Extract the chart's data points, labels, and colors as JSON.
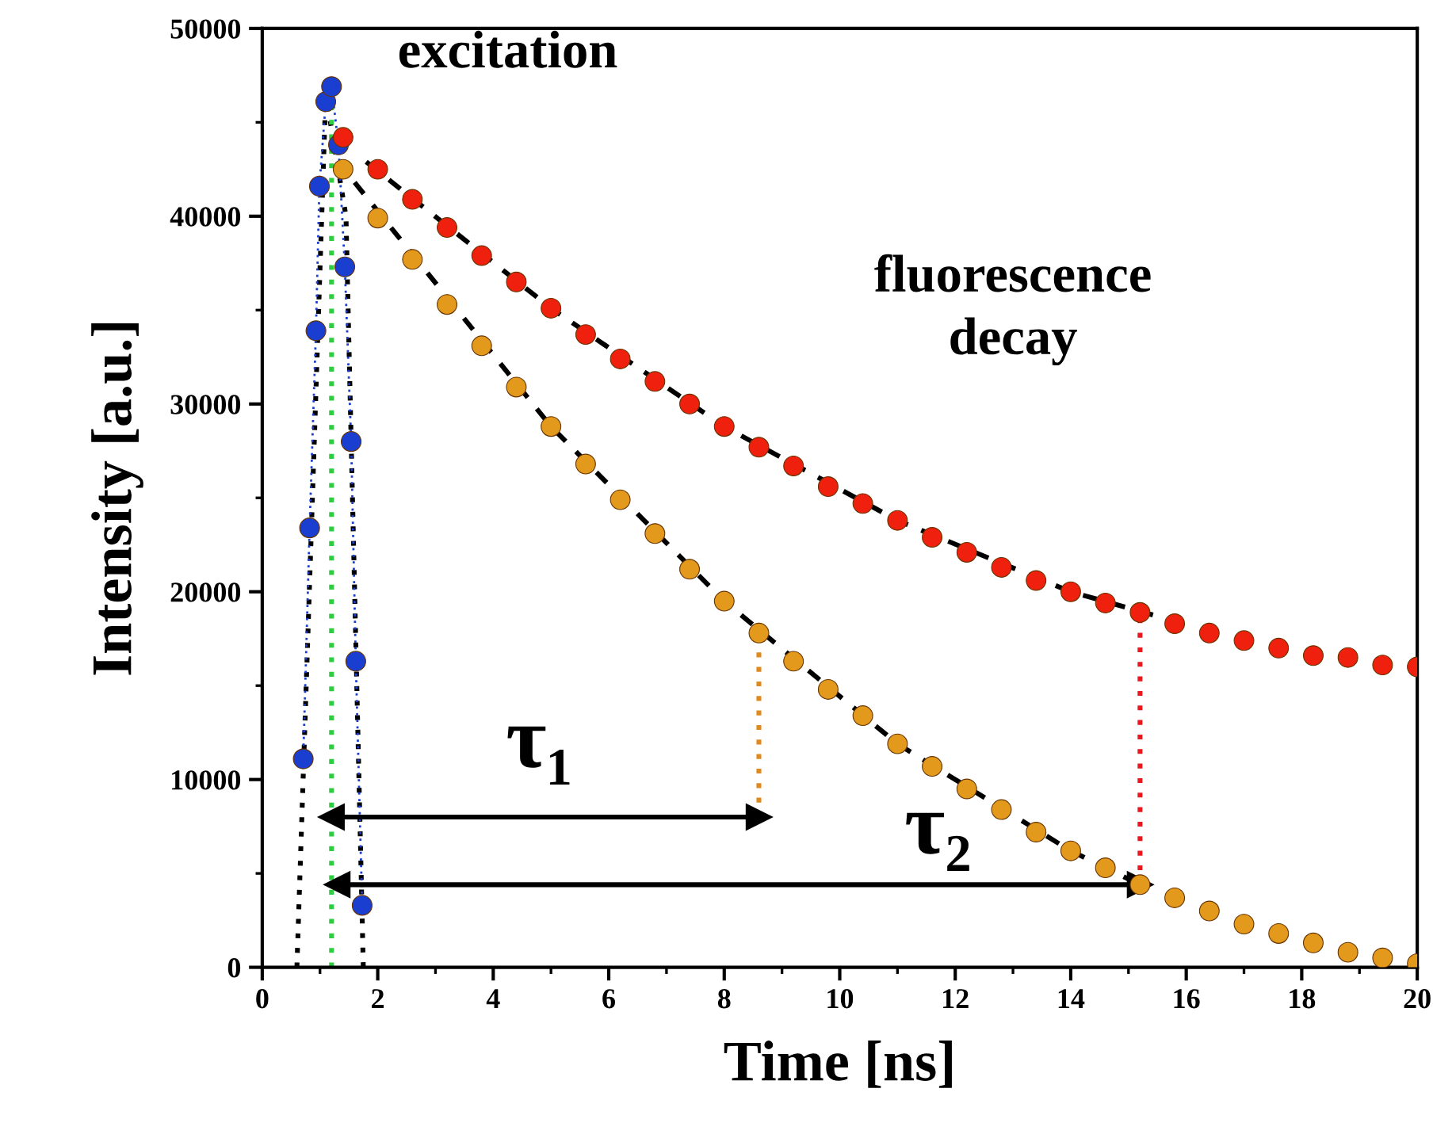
{
  "chart_data": {
    "type": "scatter",
    "xlabel": "Time [ns]",
    "ylabel": "Intensity [a.u.]",
    "xlim": [
      0,
      20
    ],
    "ylim": [
      0,
      50000
    ],
    "xticks": [
      0,
      2,
      4,
      6,
      8,
      10,
      12,
      14,
      16,
      18,
      20
    ],
    "yticks": [
      0,
      10000,
      20000,
      30000,
      40000,
      50000
    ],
    "grid": false,
    "series": [
      {
        "type": "line",
        "color": "#000000",
        "line_style": "dotted",
        "x": [
          0.6,
          1.1,
          1.45,
          1.75
        ],
        "values": [
          0,
          46500,
          40000,
          0
        ]
      },
      {
        "type": "line",
        "color": "#000000",
        "line_style": "dashed",
        "x": [
          1.8,
          5,
          8,
          11,
          14,
          15.5
        ],
        "values": [
          42900,
          35100,
          28800,
          23800,
          20000,
          18700
        ]
      },
      {
        "type": "line",
        "color": "#000000",
        "line_style": "dashed",
        "x": [
          1.6,
          5,
          8,
          11,
          14,
          15.2
        ],
        "values": [
          41800,
          28800,
          19500,
          11900,
          6200,
          4400
        ]
      },
      {
        "type": "line",
        "color": "#2ecc40",
        "line_style": "dotted",
        "x": [
          1.2,
          1.2
        ],
        "values": [
          0,
          46900
        ]
      },
      {
        "type": "line",
        "color": "#e08a1e",
        "line_style": "dotted",
        "x": [
          8.6,
          8.6
        ],
        "values": [
          8000,
          17800
        ]
      },
      {
        "type": "line",
        "color": "#e8191e",
        "line_style": "dotted",
        "x": [
          15.2,
          15.2
        ],
        "values": [
          4400,
          18900
        ]
      },
      {
        "type": "line",
        "color": "#1a3fd0",
        "line_style": "dotted",
        "marker": "circle",
        "x": [
          0.71,
          0.82,
          0.93,
          0.99,
          1.1,
          1.2,
          1.32,
          1.43,
          1.54,
          1.62,
          1.73
        ],
        "values": [
          11100,
          23400,
          33900,
          41600,
          46100,
          46900,
          43800,
          37300,
          28000,
          16300,
          3300
        ]
      },
      {
        "color": "#f0200e",
        "marker": "circle",
        "x": [
          1.4,
          2.0,
          2.6,
          3.2,
          3.8,
          4.4,
          5.0,
          5.6,
          6.2,
          6.8,
          7.4,
          8.0,
          8.6,
          9.2,
          9.8,
          10.4,
          11.0,
          11.6,
          12.2,
          12.8,
          13.4,
          14.0,
          14.6,
          15.2,
          15.8,
          16.4,
          17.0,
          17.6,
          18.2,
          18.8,
          19.4,
          20.0
        ],
        "values": [
          44200,
          42500,
          40900,
          39400,
          37900,
          36500,
          35100,
          33700,
          32400,
          31200,
          30000,
          28800,
          27700,
          26700,
          25600,
          24700,
          23800,
          22900,
          22100,
          21300,
          20600,
          20000,
          19400,
          18900,
          18300,
          17800,
          17400,
          17000,
          16600,
          16500,
          16100,
          16000
        ]
      },
      {
        "color": "#e39a1c",
        "marker": "circle",
        "x": [
          1.4,
          2.0,
          2.6,
          3.2,
          3.8,
          4.4,
          5.0,
          5.6,
          6.2,
          6.8,
          7.4,
          8.0,
          8.6,
          9.2,
          9.8,
          10.4,
          11.0,
          11.6,
          12.2,
          12.8,
          13.4,
          14.0,
          14.6,
          15.2,
          15.8,
          16.4,
          17.0,
          17.6,
          18.2,
          18.8,
          19.4,
          20.0
        ],
        "values": [
          42500,
          39900,
          37700,
          35300,
          33100,
          30900,
          28800,
          26800,
          24900,
          23100,
          21200,
          19500,
          17800,
          16300,
          14800,
          13400,
          11900,
          10700,
          9500,
          8400,
          7200,
          6200,
          5300,
          4400,
          3700,
          3000,
          2300,
          1800,
          1300,
          800,
          500,
          200
        ]
      },
      {
        "type": "line",
        "color": "#000000",
        "marker": "triangle",
        "x": [
          1.2,
          8.6
        ],
        "values": [
          8000,
          8000
        ]
      },
      {
        "type": "line",
        "color": "#000000",
        "marker": "triangle",
        "x": [
          1.3,
          15.2
        ],
        "values": [
          4400,
          4400
        ]
      }
    ],
    "annotations": [
      "excitation",
      "fluorescence\ndecay",
      "τ₁",
      "τ₂"
    ]
  }
}
